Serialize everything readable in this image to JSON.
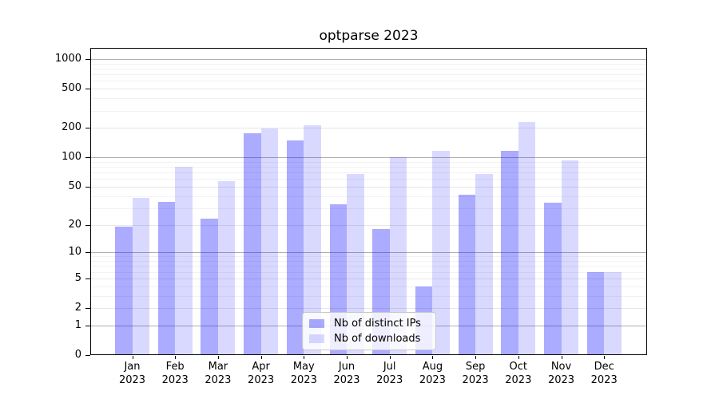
{
  "chart_data": {
    "type": "bar",
    "title": "optparse 2023",
    "categories": [
      "Jan 2023",
      "Feb 2023",
      "Mar 2023",
      "Apr 2023",
      "May 2023",
      "Jun 2023",
      "Jul 2023",
      "Aug 2023",
      "Sep 2023",
      "Oct 2023",
      "Nov 2023",
      "Dec 2023"
    ],
    "series": [
      {
        "name": "Nb of distinct IPs",
        "color": "rgba(0,0,255,0.33)",
        "color_on_white": "#aaaaff",
        "values": [
          19,
          35,
          23,
          177,
          148,
          33,
          18,
          4,
          41,
          117,
          34,
          6
        ]
      },
      {
        "name": "Nb of downloads",
        "color": "rgba(0,0,255,0.15)",
        "color_on_white": "#d9d9ff",
        "values": [
          38,
          80,
          57,
          198,
          214,
          67,
          101,
          116,
          68,
          230,
          93,
          6
        ]
      }
    ],
    "xlabel": "",
    "ylabel": "",
    "yscale": "log(1+v)",
    "y_ticks": [
      0,
      1,
      2,
      5,
      10,
      20,
      50,
      100,
      200,
      500,
      1000
    ],
    "ylim": [
      0,
      1300
    ],
    "grid": true,
    "major_grid_color": "#b0b0b0",
    "mid_grid_color": "#e7e7e7",
    "minor_grid_color": "#f2f2f2",
    "legend": {
      "position": "lower center"
    }
  }
}
